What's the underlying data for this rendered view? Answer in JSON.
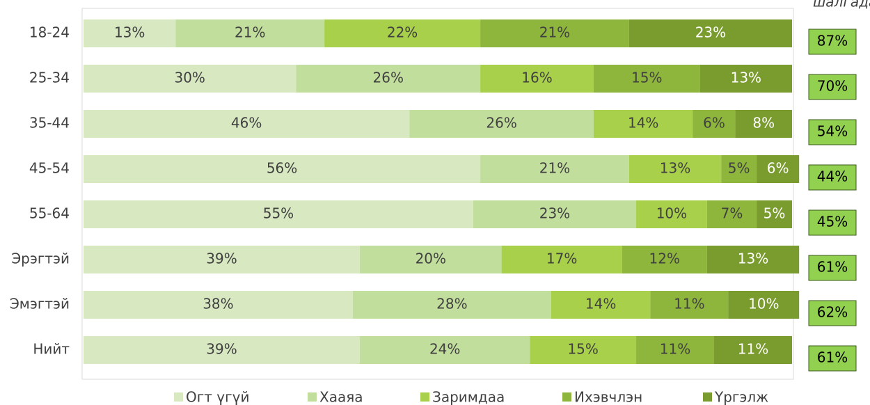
{
  "chart_data": {
    "type": "stacked_barh",
    "categories": [
      "18-24",
      "25-34",
      "35-44",
      "45-54",
      "55-64",
      "Эрэгтэй",
      "Эмэгтэй",
      "Нийт"
    ],
    "series": [
      {
        "name": "Огт үгүй",
        "color": "#d8e9c2",
        "values": [
          13,
          30,
          46,
          56,
          55,
          39,
          38,
          39
        ],
        "value_labels": [
          "13%",
          "30%",
          "46%",
          "56%",
          "55%",
          "39%",
          "38%",
          "39%"
        ]
      },
      {
        "name": "Хааяа",
        "color": "#c2de9c",
        "values": [
          21,
          26,
          26,
          21,
          23,
          20,
          28,
          24
        ],
        "value_labels": [
          "21%",
          "26%",
          "26%",
          "21%",
          "23%",
          "20%",
          "28%",
          "24%"
        ]
      },
      {
        "name": "Заримдаа",
        "color": "#a8d04a",
        "values": [
          22,
          16,
          14,
          13,
          10,
          17,
          14,
          15
        ],
        "value_labels": [
          "22%",
          "16%",
          "14%",
          "13%",
          "10%",
          "17%",
          "14%",
          "15%"
        ]
      },
      {
        "name": "Ихэвчлэн",
        "color": "#8fb63c",
        "values": [
          21,
          15,
          6,
          5,
          7,
          12,
          11,
          11
        ],
        "value_labels": [
          "21%",
          "15%",
          "6%",
          "5%",
          "7%",
          "12%",
          "11%",
          "11%"
        ]
      },
      {
        "name": "Үргэлж",
        "color": "#7a9b2e",
        "values": [
          23,
          13,
          8,
          6,
          5,
          13,
          10,
          11
        ],
        "value_labels": [
          "23%",
          "13%",
          "8%",
          "6%",
          "5%",
          "13%",
          "10%",
          "11%"
        ]
      }
    ],
    "totals": {
      "values": [
        87,
        70,
        54,
        44,
        45,
        61,
        62,
        61
      ],
      "value_labels": [
        "87%",
        "70%",
        "54%",
        "44%",
        "45%",
        "61%",
        "62%",
        "61%"
      ],
      "color": "#92d050"
    },
    "annotation": "шалгадаг",
    "legend": "bottom"
  }
}
